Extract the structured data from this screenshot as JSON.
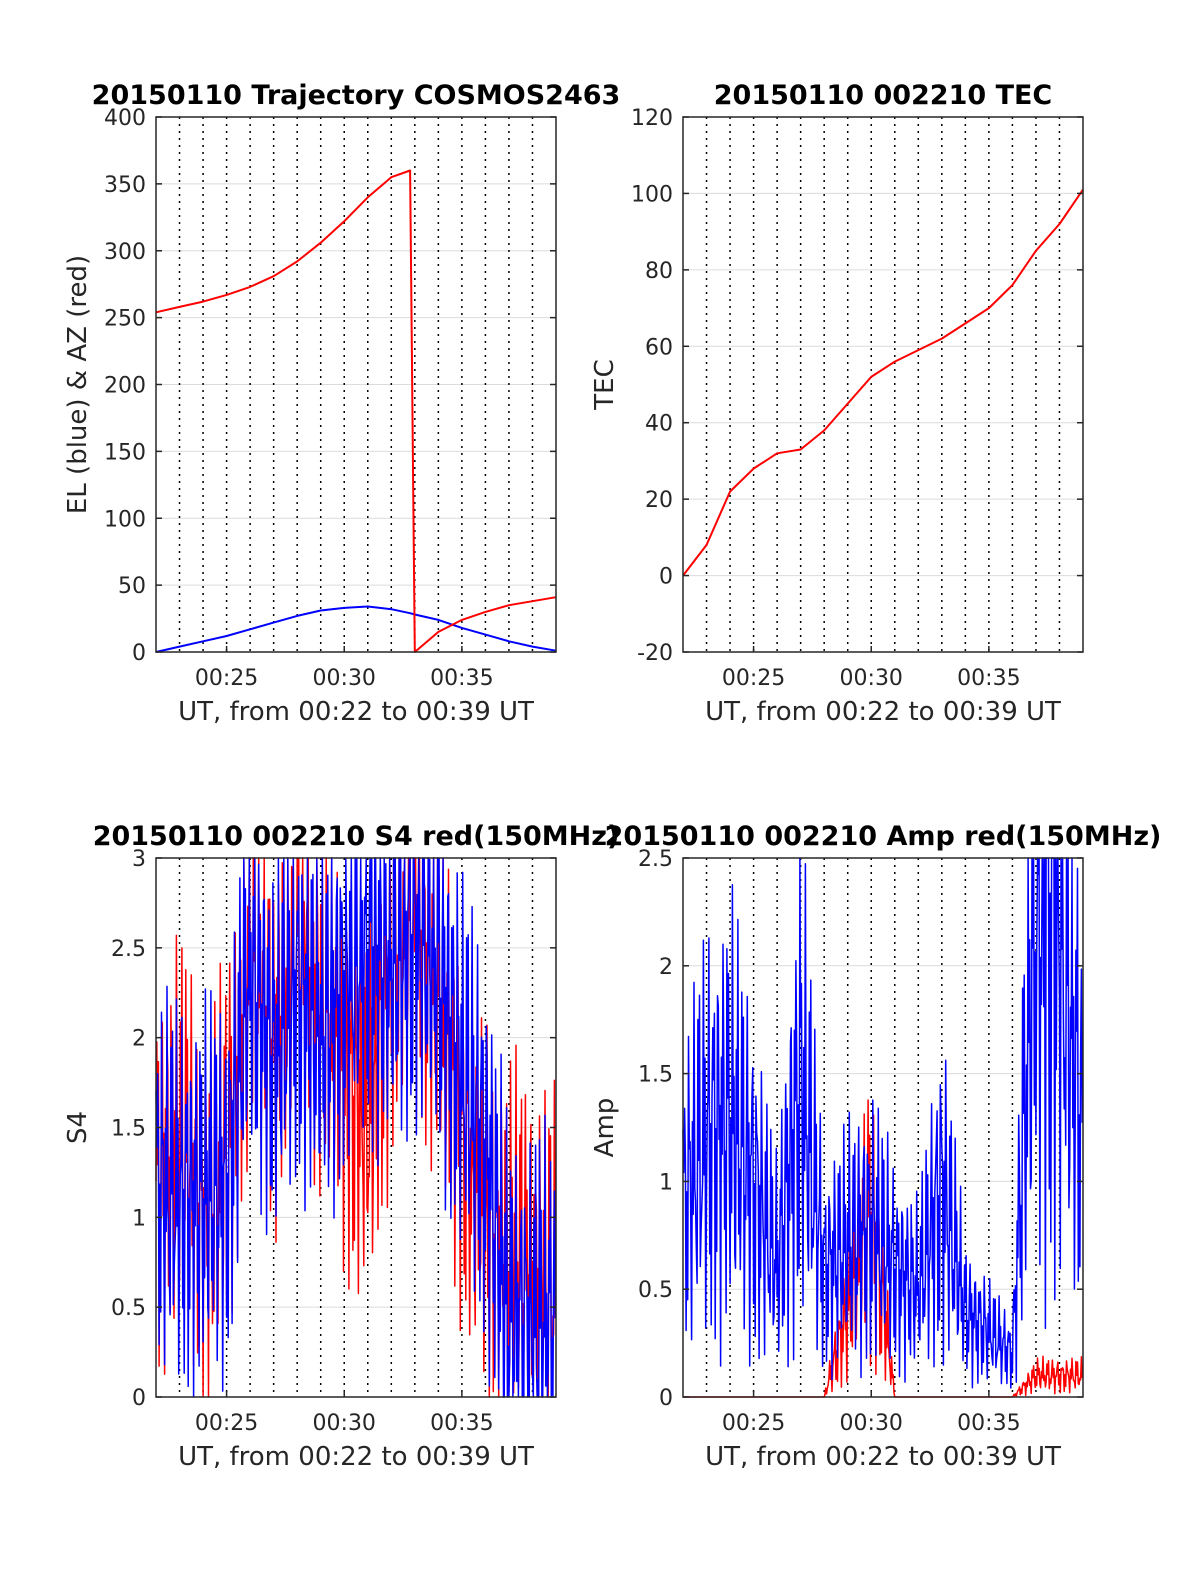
{
  "chart_data": [
    {
      "type": "line",
      "title": "20150110 Trajectory COSMOS2463",
      "xlabel": "UT, from 00:22 to 00:39 UT",
      "ylabel": "EL (blue) & AZ (red)",
      "xlim": [
        "00:22",
        "00:39"
      ],
      "ylim": [
        0,
        400
      ],
      "xticks": [
        "00:25",
        "00:30",
        "00:35"
      ],
      "yticks": [
        0,
        50,
        100,
        150,
        200,
        250,
        300,
        350,
        400
      ],
      "grid": true,
      "x": [
        "00:22",
        "00:23",
        "00:24",
        "00:25",
        "00:26",
        "00:27",
        "00:28",
        "00:29",
        "00:30",
        "00:31",
        "00:32",
        "00:32.8",
        "00:33",
        "00:34",
        "00:35",
        "00:36",
        "00:37",
        "00:38",
        "00:39"
      ],
      "series": [
        {
          "color": "#0000ff",
          "values": [
            0,
            4,
            8,
            12,
            17,
            22,
            27,
            31,
            33,
            34,
            32,
            29,
            28,
            24,
            18,
            13,
            8,
            4,
            1
          ]
        },
        {
          "color": "#ff0000",
          "values": [
            254,
            258,
            262,
            267,
            273,
            281,
            292,
            306,
            322,
            340,
            355,
            360,
            0,
            15,
            24,
            30,
            35,
            38,
            41
          ]
        }
      ]
    },
    {
      "type": "line",
      "title": "20150110 002210 TEC",
      "xlabel": "UT, from 00:22 to 00:39 UT",
      "ylabel": "TEC",
      "xlim": [
        "00:22",
        "00:39"
      ],
      "ylim": [
        -20,
        120
      ],
      "xticks": [
        "00:25",
        "00:30",
        "00:35"
      ],
      "yticks": [
        -20,
        0,
        20,
        40,
        60,
        80,
        100,
        120
      ],
      "grid": true,
      "x": [
        "00:22",
        "00:23",
        "00:24",
        "00:25",
        "00:26",
        "00:27",
        "00:28",
        "00:29",
        "00:30",
        "00:31",
        "00:32",
        "00:33",
        "00:34",
        "00:35",
        "00:36",
        "00:37",
        "00:38",
        "00:39"
      ],
      "series": [
        {
          "color": "#ff0000",
          "values": [
            0,
            8,
            22,
            28,
            32,
            33,
            38,
            45,
            52,
            56,
            59,
            62,
            66,
            70,
            76,
            85,
            92,
            101
          ]
        }
      ]
    },
    {
      "type": "line",
      "title": "20150110 002210 S4 red(150MHz)",
      "xlabel": "UT, from 00:22 to 00:39 UT",
      "ylabel": "S4",
      "xlim": [
        "00:22",
        "00:39"
      ],
      "ylim": [
        0,
        3
      ],
      "xticks": [
        "00:25",
        "00:30",
        "00:35"
      ],
      "yticks": [
        0,
        0.5,
        1,
        1.5,
        2,
        2.5,
        3
      ],
      "grid": true,
      "x": [
        "00:22",
        "00:23",
        "00:24",
        "00:25",
        "00:26",
        "00:27",
        "00:28",
        "00:29",
        "00:30",
        "00:31",
        "00:32",
        "00:33",
        "00:34",
        "00:35",
        "00:36",
        "00:37",
        "00:38",
        "00:39"
      ],
      "series": [
        {
          "color": "#ff0000",
          "values": [
            1.2,
            1.5,
            1.0,
            1.3,
            2.5,
            2.0,
            2.6,
            2.2,
            1.8,
            1.5,
            2.4,
            2.7,
            2.2,
            1.5,
            1.0,
            0.8,
            0.7,
            0.6
          ]
        },
        {
          "color": "#0000ff",
          "values": [
            1.2,
            1.1,
            1.1,
            1.2,
            2.4,
            1.9,
            2.3,
            2.0,
            2.3,
            2.5,
            2.4,
            2.6,
            2.4,
            1.8,
            1.4,
            0.4,
            0.4,
            0.4
          ]
        }
      ]
    },
    {
      "type": "line",
      "title": "20150110 002210 Amp red(150MHz)",
      "xlabel": "UT, from 00:22 to 00:39 UT",
      "ylabel": "Amp",
      "xlim": [
        "00:22",
        "00:39"
      ],
      "ylim": [
        0,
        2.5
      ],
      "xticks": [
        "00:25",
        "00:30",
        "00:35"
      ],
      "yticks": [
        0,
        0.5,
        1,
        1.5,
        2,
        2.5
      ],
      "grid": true,
      "x": [
        "00:22",
        "00:23",
        "00:24",
        "00:25",
        "00:26",
        "00:27",
        "00:28",
        "00:29",
        "00:30",
        "00:31",
        "00:32",
        "00:33",
        "00:34",
        "00:35",
        "00:36",
        "00:37",
        "00:38",
        "00:39"
      ],
      "series": [
        {
          "color": "#ff0000",
          "values": [
            0,
            0,
            0,
            0,
            0,
            0,
            0,
            0.4,
            0.9,
            0,
            0,
            0,
            0,
            0,
            0,
            0.1,
            0.1,
            0.1
          ]
        },
        {
          "color": "#0000ff",
          "values": [
            0.9,
            1.2,
            1.3,
            1.0,
            0.6,
            1.5,
            0.6,
            0.7,
            0.8,
            0.6,
            0.5,
            1.0,
            0.4,
            0.3,
            0.2,
            2.4,
            2.3,
            1.2
          ]
        }
      ]
    }
  ]
}
